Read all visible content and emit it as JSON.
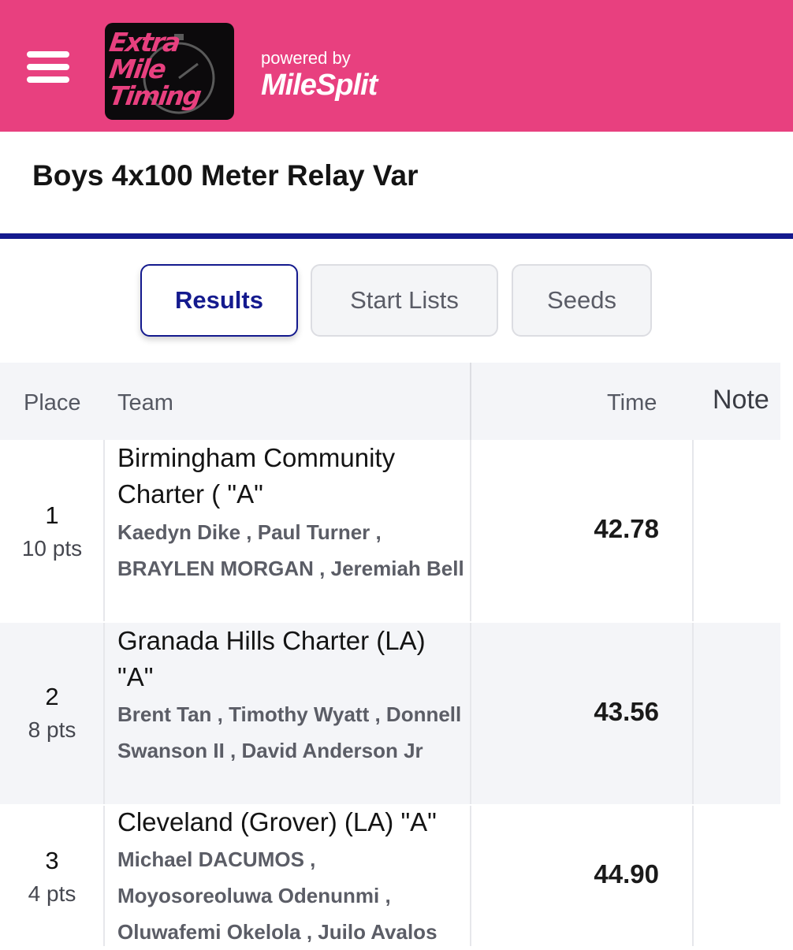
{
  "header": {
    "logo_text": [
      "Extra",
      "Mile",
      "Timing"
    ],
    "powered_by": "powered by",
    "brand": "MileSplit",
    "colors": {
      "background": "#e8407f",
      "accent": "#141a8e"
    }
  },
  "page": {
    "title": "Boys 4x100 Meter Relay Var"
  },
  "tabs": [
    {
      "label": "Results",
      "active": true
    },
    {
      "label": "Start Lists",
      "active": false
    },
    {
      "label": "Seeds",
      "active": false
    }
  ],
  "table": {
    "headers": {
      "place": "Place",
      "team": "Team",
      "time": "Time",
      "note": "Note"
    },
    "rows": [
      {
        "place": "1",
        "points": "10 pts",
        "team": "Birmingham Community Charter ( \"A\"",
        "athletes": "Kaedyn Dike , Paul Turner , BRAYLEN MORGAN , Jeremiah Bell",
        "time": "42.78",
        "note": ""
      },
      {
        "place": "2",
        "points": "8 pts",
        "team": "Granada Hills Charter (LA) \"A\"",
        "athletes": "Brent Tan , Timothy Wyatt , Donnell Swanson II , David Anderson Jr",
        "time": "43.56",
        "note": ""
      },
      {
        "place": "3",
        "points": "4 pts",
        "team": "Cleveland (Grover) (LA) \"A\"",
        "athletes": "Michael DACUMOS , Moyosoreoluwa Odenunmi , Oluwafemi Okelola , Juilo Avalos",
        "time": "44.90",
        "note": ""
      }
    ]
  }
}
